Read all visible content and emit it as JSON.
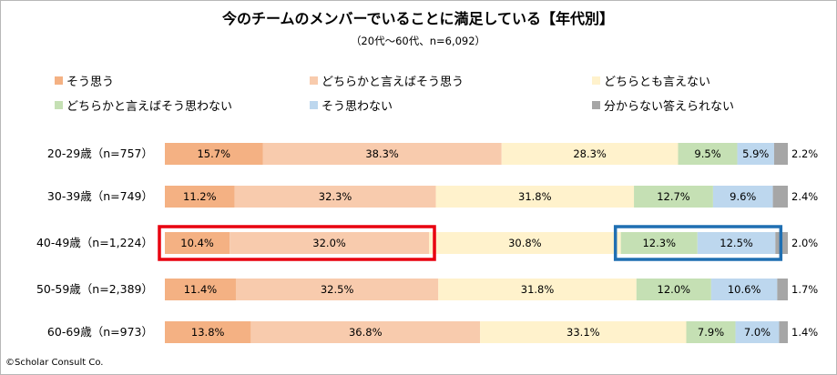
{
  "chart_data": {
    "type": "bar",
    "stacked": true,
    "orientation": "horizontal",
    "title": "今のチームのメンバーでいることに満足している【年代別】",
    "subtitle": "（20代〜60代、n=6,092）",
    "categories": [
      "20-29歳（n=757）",
      "30-39歳（n=749）",
      "40-49歳（n=1,224）",
      "50-59歳（n=2,389）",
      "60-69歳（n=973）"
    ],
    "series": [
      {
        "name": "そう思う",
        "color": "#f4b183",
        "values": [
          15.7,
          11.2,
          10.4,
          11.4,
          13.8
        ]
      },
      {
        "name": "どちらかと言えばそう思う",
        "color": "#f8cbad",
        "values": [
          38.3,
          32.3,
          32.0,
          32.5,
          36.8
        ]
      },
      {
        "name": "どちらとも言えない",
        "color": "#fff2cc",
        "values": [
          28.3,
          31.8,
          30.8,
          31.8,
          33.1
        ]
      },
      {
        "name": "どちらかと言えばそう思わない",
        "color": "#c5e0b4",
        "values": [
          9.5,
          12.7,
          12.3,
          12.0,
          7.9
        ]
      },
      {
        "name": "そう思わない",
        "color": "#bdd7ee",
        "values": [
          5.9,
          9.6,
          12.5,
          10.6,
          7.0
        ]
      },
      {
        "name": "分からない答えられない",
        "color": "#a6a6a6",
        "values": [
          2.2,
          2.4,
          2.0,
          1.7,
          1.4
        ]
      }
    ],
    "value_labels": [
      [
        "15.7%",
        "38.3%",
        "28.3%",
        "9.5%",
        "5.9%",
        "2.2%"
      ],
      [
        "11.2%",
        "32.3%",
        "31.8%",
        "12.7%",
        "9.6%",
        "2.4%"
      ],
      [
        "10.4%",
        "32.0%",
        "30.8%",
        "12.3%",
        "12.5%",
        "2.0%"
      ],
      [
        "11.4%",
        "32.5%",
        "31.8%",
        "12.0%",
        "10.6%",
        "1.7%"
      ],
      [
        "13.8%",
        "36.8%",
        "33.1%",
        "7.9%",
        "7.0%",
        "1.4%"
      ]
    ],
    "xlim": [
      0,
      100
    ],
    "legend_position": "top",
    "highlights": [
      {
        "row": 2,
        "series": [
          0,
          1
        ],
        "color": "#e8000f"
      },
      {
        "row": 2,
        "series": [
          3,
          4
        ],
        "color": "#1f6fb2"
      }
    ]
  },
  "footer": {
    "copyright": "©Scholar Consult Co."
  }
}
